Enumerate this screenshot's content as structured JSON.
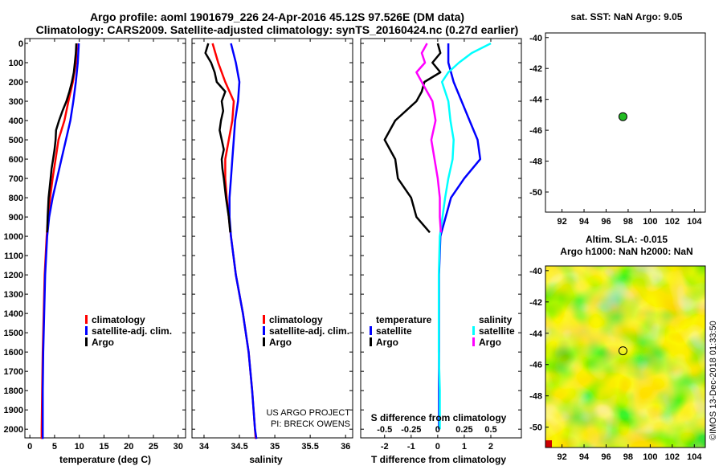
{
  "header": {
    "line1": "Argo profile: aoml 1901679_226 24-Apr-2016 45.12S 97.526E (DM data)",
    "line2": "Climatology: CARS2009. Satellite-adjusted climatology: synTS_20160424.nc (0.27d earlier)"
  },
  "colors": {
    "climatology": "#ff0000",
    "satellite": "#0000ff",
    "argo": "#000000",
    "sal_satellite": "#00ffff",
    "sal_argo": "#ff00ff",
    "marker": "#22bb22"
  },
  "depth_ticks": [
    "0",
    "100",
    "200",
    "300",
    "400",
    "500",
    "600",
    "700",
    "800",
    "900",
    "1000",
    "1100",
    "1200",
    "1300",
    "1400",
    "1500",
    "1600",
    "1700",
    "1800",
    "1900",
    "2000"
  ],
  "chart_data": [
    {
      "type": "line",
      "id": "temperature",
      "xlabel": "temperature (deg C)",
      "ylabel": "depth",
      "xlim": [
        -1,
        31.5
      ],
      "ylim": [
        2070,
        0
      ],
      "xticks": [
        "0",
        "5",
        "10",
        "15",
        "20",
        "25",
        "30"
      ],
      "legend": [
        "climatology",
        "satellite-adj. clim.",
        "Argo"
      ],
      "series": [
        {
          "name": "climatology",
          "depth": [
            0,
            100,
            200,
            300,
            400,
            500,
            600,
            700,
            800,
            900,
            1000,
            1200,
            1400,
            1600,
            1800,
            2000,
            2050
          ],
          "values": [
            9.5,
            9.3,
            8.7,
            7.8,
            7.0,
            5.8,
            5.2,
            4.6,
            4.1,
            3.7,
            3.4,
            3.0,
            2.8,
            2.6,
            2.5,
            2.4,
            2.4
          ]
        },
        {
          "name": "satellite-adj. clim.",
          "depth": [
            0,
            100,
            200,
            300,
            400,
            500,
            600,
            700,
            800,
            900,
            1000,
            1200,
            1400,
            1600,
            1800,
            2000,
            2050
          ],
          "values": [
            9.9,
            9.7,
            9.3,
            8.8,
            8.2,
            7.3,
            6.4,
            5.5,
            4.6,
            3.9,
            3.5,
            3.1,
            2.9,
            2.7,
            2.6,
            2.6,
            2.6
          ]
        },
        {
          "name": "Argo",
          "depth": [
            0,
            50,
            100,
            150,
            200,
            250,
            300,
            350,
            400,
            450,
            500,
            550,
            600,
            650,
            700,
            800,
            900,
            980
          ],
          "values": [
            9.4,
            9.3,
            9.1,
            8.9,
            8.5,
            8.0,
            7.4,
            6.6,
            5.9,
            5.3,
            5.2,
            5.0,
            4.7,
            4.4,
            4.2,
            3.8,
            3.6,
            3.5
          ]
        }
      ]
    },
    {
      "type": "line",
      "id": "salinity",
      "xlabel": "salinity",
      "ylabel": "depth",
      "xlim": [
        33.83,
        36.1
      ],
      "ylim": [
        2070,
        0
      ],
      "xticks": [
        "34",
        "34.5",
        "35",
        "35.5",
        "36"
      ],
      "legend": [
        "climatology",
        "satellite-adj. clim.",
        "Argo"
      ],
      "credits": [
        "US ARGO PROJECT",
        "PI: BRECK OWENS"
      ],
      "series": [
        {
          "name": "climatology",
          "depth": [
            0,
            100,
            200,
            300,
            400,
            500,
            600,
            700,
            800,
            900,
            1000,
            1200,
            1400,
            1600,
            1800,
            2000,
            2050
          ],
          "values": [
            34.12,
            34.2,
            34.3,
            34.42,
            34.4,
            34.35,
            34.3,
            34.3,
            34.32,
            34.35,
            34.38,
            34.45,
            34.55,
            34.63,
            34.68,
            34.72,
            34.73
          ]
        },
        {
          "name": "satellite-adj. clim.",
          "depth": [
            0,
            100,
            200,
            300,
            400,
            500,
            600,
            700,
            800,
            900,
            1000,
            1200,
            1400,
            1600,
            1800,
            2000,
            2050
          ],
          "values": [
            34.38,
            34.45,
            34.5,
            34.48,
            34.44,
            34.42,
            34.4,
            34.38,
            34.36,
            34.36,
            34.38,
            34.45,
            34.55,
            34.63,
            34.68,
            34.72,
            34.74
          ]
        },
        {
          "name": "Argo",
          "depth": [
            0,
            50,
            100,
            150,
            200,
            250,
            300,
            350,
            400,
            450,
            500,
            550,
            600,
            650,
            700,
            800,
            900,
            980
          ],
          "values": [
            34.06,
            34.02,
            34.1,
            34.15,
            34.18,
            34.3,
            34.25,
            34.27,
            34.24,
            34.22,
            34.25,
            34.28,
            34.25,
            34.26,
            34.28,
            34.31,
            34.35,
            34.37
          ]
        }
      ]
    },
    {
      "type": "line",
      "id": "difference",
      "xlabel": "T difference from climatology",
      "xlabel_top": "S difference from climatology",
      "ylabel": "depth",
      "xlim": [
        -2.9,
        3.15
      ],
      "ylim": [
        2070,
        0
      ],
      "xticks": [
        "-2",
        "-1",
        "0",
        "1",
        "2"
      ],
      "xticks_salinity": [
        "-0.5",
        "-0.25",
        "0",
        "0.25",
        "0.5"
      ],
      "legend_temperature": {
        "title": "temperature",
        "items": [
          "satellite",
          "Argo"
        ]
      },
      "legend_salinity": {
        "title": "salinity",
        "items": [
          "satellite",
          "Argo"
        ]
      },
      "series": [
        {
          "name": "T satellite",
          "depth": [
            0,
            100,
            200,
            300,
            400,
            500,
            600,
            700,
            800,
            1000,
            1200,
            1400,
            1600,
            1800,
            2000
          ],
          "values": [
            0.4,
            0.4,
            0.6,
            0.9,
            1.2,
            1.5,
            1.6,
            1.0,
            0.5,
            0.1,
            0.05,
            0.05,
            0.05,
            0.05,
            0.05
          ]
        },
        {
          "name": "T Argo",
          "depth": [
            0,
            50,
            100,
            150,
            200,
            250,
            300,
            400,
            500,
            600,
            700,
            800,
            900,
            980
          ],
          "values": [
            0.0,
            0.1,
            -0.2,
            0.1,
            -0.5,
            -0.6,
            -0.8,
            -1.6,
            -2.0,
            -1.6,
            -1.5,
            -1.0,
            -0.8,
            -0.3
          ]
        },
        {
          "name": "S satellite",
          "depth": [
            0,
            50,
            100,
            150,
            200,
            300,
            400,
            500,
            600,
            700,
            800,
            1000,
            1200,
            1400,
            1600,
            1800,
            2000
          ],
          "values": [
            0.5,
            0.32,
            0.2,
            0.1,
            0.04,
            0.1,
            0.12,
            0.15,
            0.14,
            0.1,
            0.07,
            0.02,
            0.01,
            0.01,
            0.01,
            0.02,
            0.02
          ]
        },
        {
          "name": "S Argo",
          "depth": [
            0,
            50,
            100,
            150,
            200,
            250,
            300,
            400,
            500,
            600,
            700,
            800,
            900,
            980
          ],
          "values": [
            -0.1,
            -0.15,
            -0.12,
            -0.2,
            -0.15,
            -0.1,
            -0.05,
            -0.02,
            -0.06,
            -0.03,
            0.0,
            0.02,
            0.02,
            0.03
          ]
        }
      ]
    },
    {
      "type": "scatter",
      "id": "sst-map",
      "title": "sat. SST: NaN Argo: 9.05",
      "xlim": [
        90.5,
        105
      ],
      "ylim": [
        -51.3,
        -39.7
      ],
      "xticks": [
        "92",
        "94",
        "96",
        "98",
        "100",
        "102",
        "104"
      ],
      "yticks": [
        "-40",
        "-42",
        "-44",
        "-46",
        "-48",
        "-50"
      ],
      "points": [
        {
          "lon": 97.526,
          "lat": -45.12
        }
      ]
    },
    {
      "type": "heatmap",
      "id": "sla-map",
      "title_line1": "Altim. SLA: -0.015",
      "title_line2": "Argo h1000: NaN h2000: NaN",
      "xlim": [
        90.5,
        105
      ],
      "ylim": [
        -51.3,
        -39.7
      ],
      "xticks": [
        "92",
        "94",
        "96",
        "98",
        "100",
        "102",
        "104"
      ],
      "yticks": [
        "-40",
        "-42",
        "-44",
        "-46",
        "-48",
        "-50"
      ],
      "points": [
        {
          "lon": 97.526,
          "lat": -45.12
        }
      ]
    }
  ],
  "watermark": "©IMOS 13-Dec-2018 01:33:50"
}
